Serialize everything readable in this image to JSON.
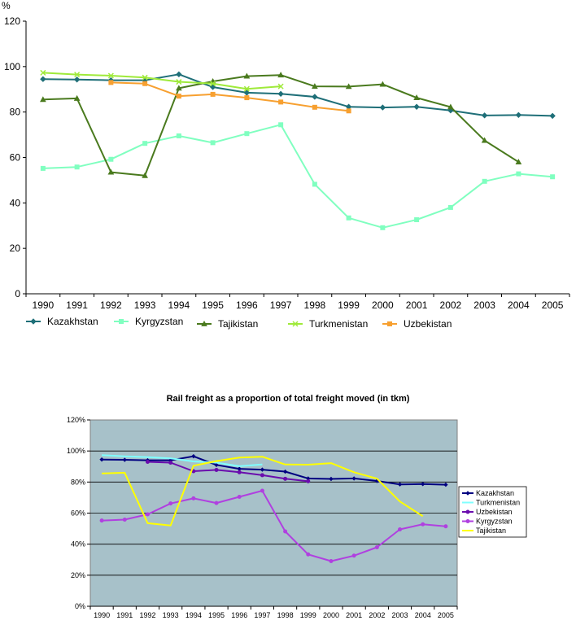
{
  "chart_data": [
    {
      "type": "line",
      "title": "",
      "ylabel": "%",
      "xlabel": "",
      "ylim": [
        0,
        120
      ],
      "yticks": [
        0,
        20,
        40,
        60,
        80,
        100,
        120
      ],
      "x": [
        "1990",
        "1991",
        "1992",
        "1993",
        "1994",
        "1995",
        "1996",
        "1997",
        "1998",
        "1999",
        "2000",
        "2001",
        "2002",
        "2003",
        "2004",
        "2005"
      ],
      "grid": false,
      "legend_position": "bottom",
      "series": [
        {
          "name": "Kazakhstan",
          "color": "#1F6F78",
          "marker": "diamond",
          "values": [
            94.5,
            94.3,
            94.0,
            94.0,
            96.6,
            91.0,
            88.5,
            88.0,
            86.7,
            82.3,
            82.0,
            82.3,
            80.7,
            78.5,
            78.7,
            78.3
          ]
        },
        {
          "name": "Kyrgyzstan",
          "color": "#80FFC0",
          "marker": "square",
          "values": [
            55.2,
            55.8,
            59.2,
            66.2,
            69.5,
            66.5,
            70.5,
            74.4,
            48.2,
            33.4,
            29.1,
            32.6,
            38.0,
            49.5,
            52.8,
            51.5
          ]
        },
        {
          "name": "Tajikistan",
          "color": "#4A7A1E",
          "marker": "triangle",
          "values": [
            85.5,
            86.0,
            53.5,
            52.0,
            90.5,
            93.5,
            95.8,
            96.3,
            91.3,
            91.2,
            92.2,
            86.3,
            82.2,
            67.5,
            58.0,
            null
          ]
        },
        {
          "name": "Turkmenistan",
          "color": "#9FEA3A",
          "marker": "x",
          "values": [
            97.3,
            96.5,
            96.0,
            95.2,
            93.3,
            92.5,
            90.2,
            91.3,
            null,
            null,
            null,
            null,
            null,
            null,
            null,
            null
          ]
        },
        {
          "name": "Uzbekistan",
          "color": "#F7A030",
          "marker": "square",
          "values": [
            null,
            null,
            93.0,
            92.5,
            87.0,
            87.8,
            86.3,
            84.4,
            82.1,
            80.5,
            null,
            null,
            null,
            null,
            null,
            null
          ]
        }
      ]
    },
    {
      "type": "line",
      "title": "Rail freight as a proportion of total freight moved (in tkm)",
      "xlabel": "",
      "ylabel": "",
      "ylim": [
        0,
        120
      ],
      "ytick_labels": [
        "0%",
        "20%",
        "40%",
        "60%",
        "80%",
        "100%",
        "120%"
      ],
      "yticks": [
        0,
        20,
        40,
        60,
        80,
        100,
        120
      ],
      "x": [
        "1990",
        "1991",
        "1992",
        "1993",
        "1994",
        "1995",
        "1996",
        "1997",
        "1998",
        "1999",
        "2000",
        "2001",
        "2002",
        "2003",
        "2004",
        "2005"
      ],
      "grid": true,
      "plot_background": "#A7C1C9",
      "legend_position": "right",
      "series": [
        {
          "name": "Kazakhstan",
          "color": "#000080",
          "marker": "diamond",
          "values": [
            94.5,
            94.3,
            94.0,
            94.0,
            96.6,
            91.0,
            88.5,
            88.0,
            86.7,
            82.3,
            82.0,
            82.3,
            80.7,
            78.5,
            78.7,
            78.3
          ]
        },
        {
          "name": "Turkmenistan",
          "color": "#80FFFF",
          "marker": "none",
          "values": [
            97.3,
            96.5,
            96.0,
            95.2,
            93.3,
            92.5,
            90.2,
            91.3,
            null,
            null,
            null,
            null,
            null,
            null,
            null,
            null
          ]
        },
        {
          "name": "Uzbekistan",
          "color": "#6A0DAD",
          "marker": "dot",
          "values": [
            null,
            null,
            93.0,
            92.5,
            87.0,
            87.8,
            86.3,
            84.4,
            82.1,
            80.5,
            null,
            null,
            null,
            null,
            null,
            null
          ]
        },
        {
          "name": "Kyrgyzstan",
          "color": "#B040E0",
          "marker": "dot",
          "values": [
            55.2,
            55.8,
            59.2,
            66.2,
            69.5,
            66.5,
            70.5,
            74.4,
            48.2,
            33.4,
            29.1,
            32.6,
            38.0,
            49.5,
            52.8,
            51.5
          ]
        },
        {
          "name": "Tajikistan",
          "color": "#FFFF00",
          "marker": "none",
          "values": [
            85.5,
            86.0,
            53.5,
            52.0,
            90.5,
            93.5,
            95.8,
            96.3,
            91.3,
            91.2,
            92.2,
            86.3,
            82.2,
            67.5,
            58.0,
            null
          ]
        }
      ]
    }
  ]
}
